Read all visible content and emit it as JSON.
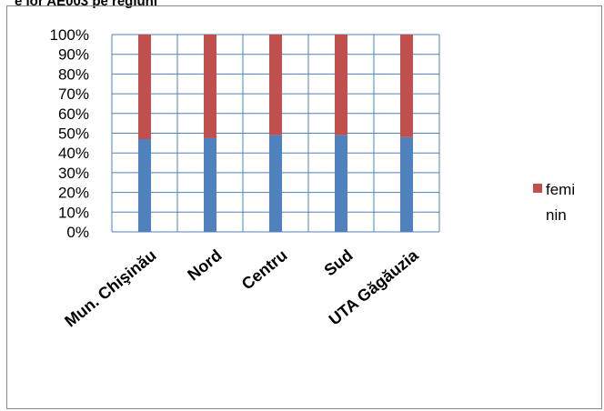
{
  "top_title": "e lor AE003 pe regiuni",
  "chart_data": {
    "type": "bar",
    "stacked": "percent",
    "categories": [
      "Mun. Chişinău",
      "Nord",
      "Centru",
      "Sud",
      "UTA Găgăuzia"
    ],
    "series": [
      {
        "name": "",
        "color": "#4f81bd",
        "values": [
          47,
          47.5,
          49,
          49,
          48
        ]
      },
      {
        "name": "feminin",
        "color": "#c0504d",
        "values": [
          53,
          52.5,
          51,
          51,
          52
        ]
      }
    ],
    "y_ticks": [
      "0%",
      "10%",
      "20%",
      "30%",
      "40%",
      "50%",
      "60%",
      "70%",
      "80%",
      "90%",
      "100%"
    ],
    "ylim": [
      0,
      100
    ],
    "grid": true,
    "legend_placement": "right",
    "legend_lines": [
      "femi",
      "nin"
    ]
  }
}
